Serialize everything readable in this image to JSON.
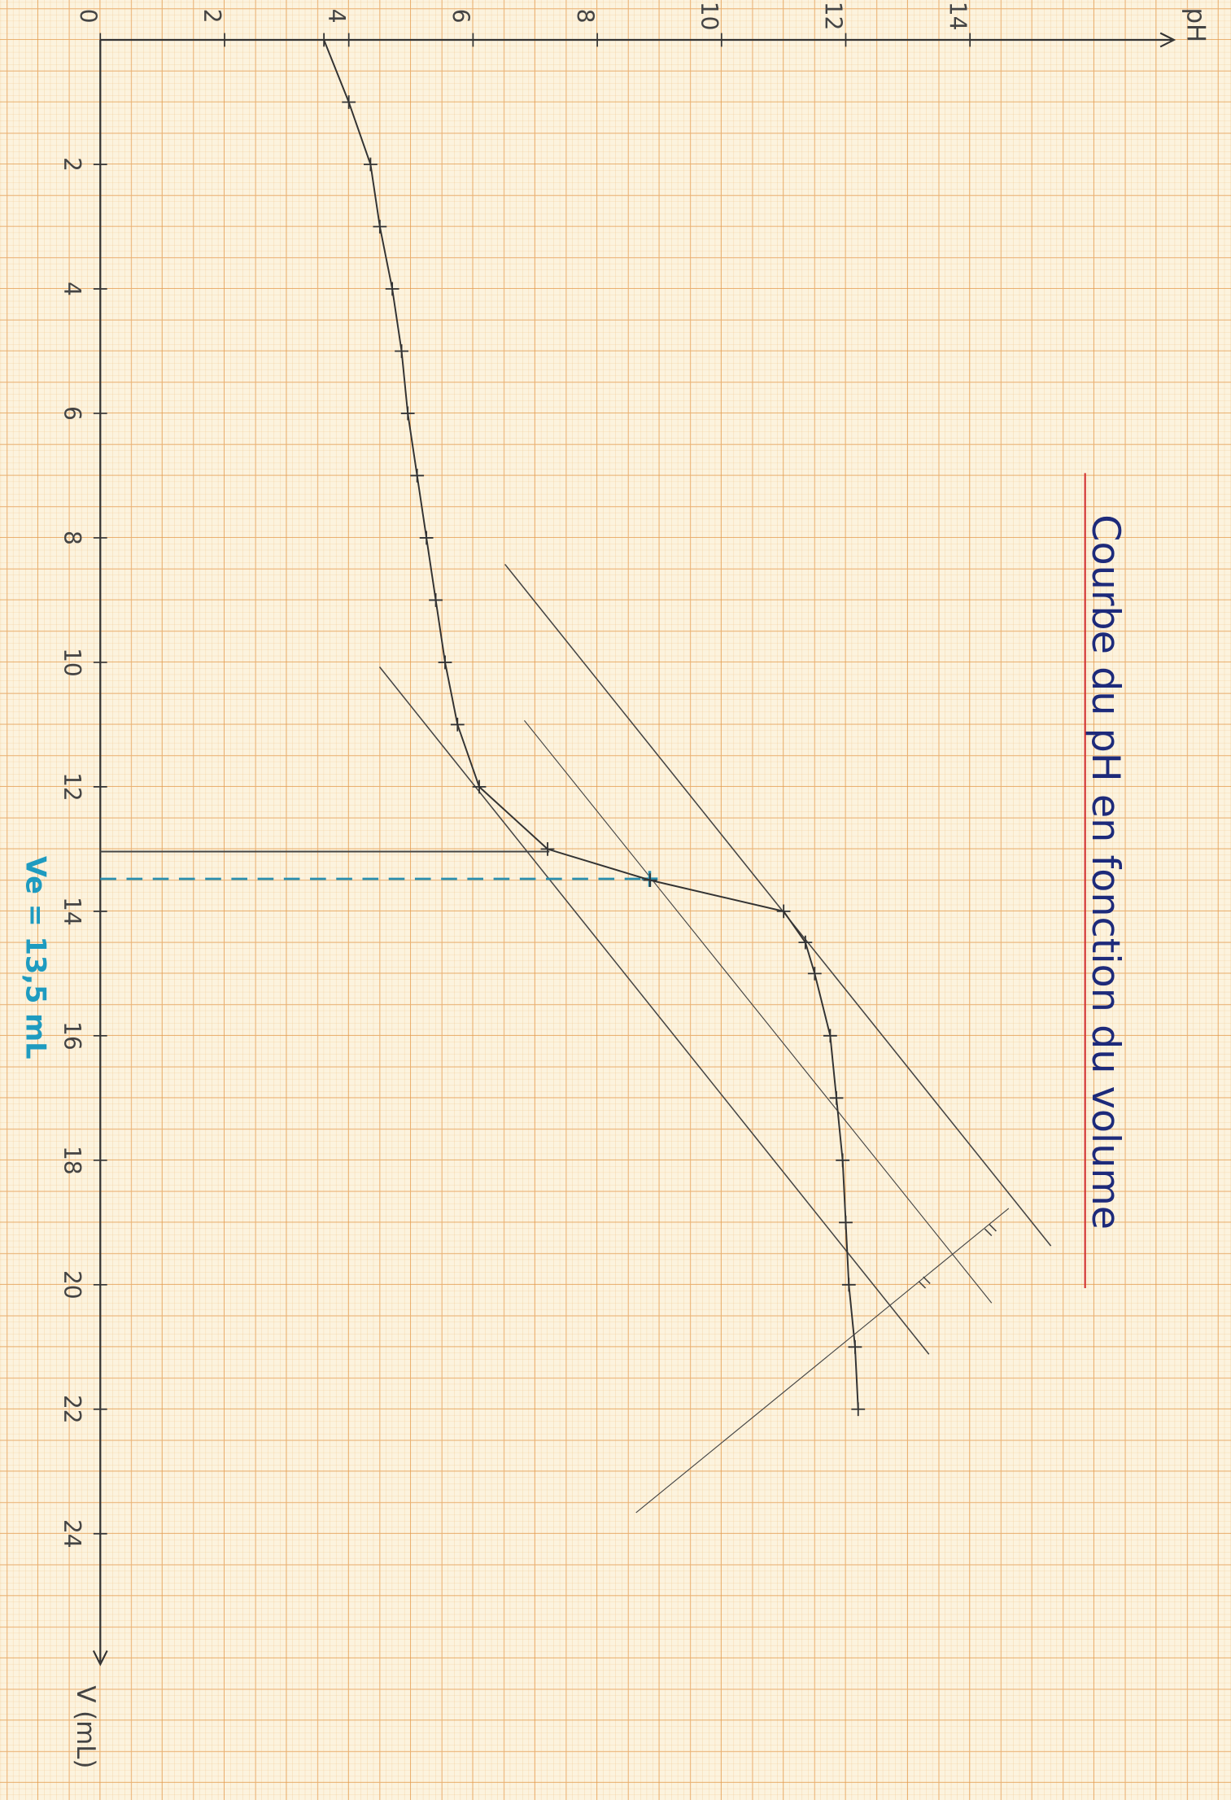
{
  "chart_data": {
    "type": "line",
    "title": "Courbe du pH en fonction du volume",
    "x_label": "V (mL)",
    "annotation": "Ve = 13,5 mL",
    "x": [
      0,
      1,
      2,
      3,
      4,
      5,
      6,
      7,
      8,
      9,
      10,
      11,
      12,
      13,
      13.5,
      14,
      14.5,
      15,
      16,
      17,
      18,
      19,
      20,
      21,
      22
    ],
    "series": [
      {
        "name": "pH",
        "color": "#333333",
        "values": [
          3.6,
          4.0,
          4.35,
          4.5,
          4.7,
          4.85,
          4.95,
          5.1,
          5.25,
          5.4,
          5.55,
          5.75,
          6.1,
          7.2,
          8.85,
          11.0,
          11.35,
          11.5,
          11.75,
          11.85,
          11.95,
          12.0,
          12.05,
          12.15,
          12.2
        ]
      }
    ],
    "xlim": [
      0,
      26
    ],
    "ylim": [
      0,
      17
    ],
    "xticks": [
      2,
      4,
      6,
      8,
      10,
      12,
      14,
      16,
      18,
      20,
      22,
      24
    ],
    "yticks": [
      0,
      2,
      4,
      6,
      8,
      10,
      12,
      14
    ]
  }
}
